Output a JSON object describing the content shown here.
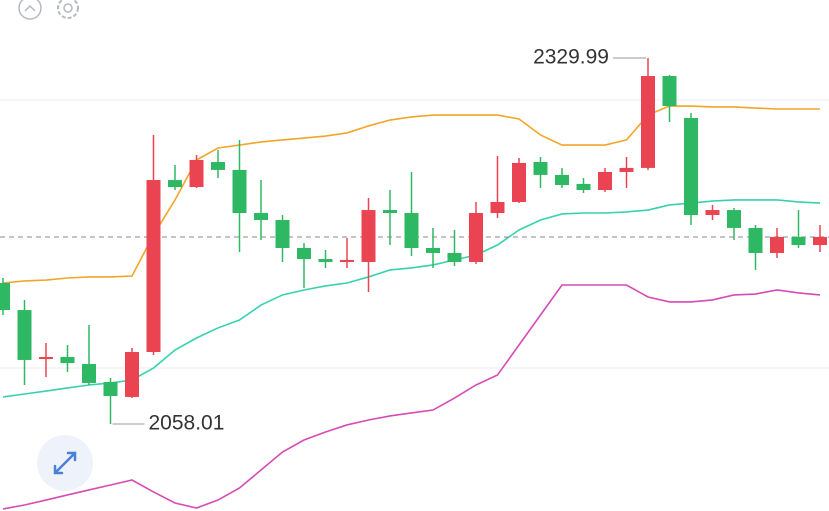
{
  "chart_data": {
    "type": "candlestick",
    "up_color": "#ea4452",
    "down_color": "#2fb863",
    "candles": [
      {
        "open": 2162.8,
        "high": 2166.5,
        "low": 2139.0,
        "close": 2142.7
      },
      {
        "open": 2142.7,
        "high": 2150.2,
        "low": 2087.0,
        "close": 2105.6
      },
      {
        "open": 2106.3,
        "high": 2118.2,
        "low": 2092.9,
        "close": 2107.8
      },
      {
        "open": 2107.8,
        "high": 2116.7,
        "low": 2096.7,
        "close": 2103.3
      },
      {
        "open": 2102.6,
        "high": 2131.6,
        "low": 2087.0,
        "close": 2088.5
      },
      {
        "open": 2089.2,
        "high": 2092.2,
        "low": 2058.01,
        "close": 2078.8
      },
      {
        "open": 2078.1,
        "high": 2114.5,
        "low": 2077.3,
        "close": 2111.5
      },
      {
        "open": 2111.5,
        "high": 2272.8,
        "low": 2109.3,
        "close": 2239.3
      },
      {
        "open": 2239.3,
        "high": 2250.5,
        "low": 2231.9,
        "close": 2234.1
      },
      {
        "open": 2234.1,
        "high": 2257.9,
        "low": 2233.4,
        "close": 2254.2
      },
      {
        "open": 2252.7,
        "high": 2261.6,
        "low": 2240.8,
        "close": 2246.8
      },
      {
        "open": 2246.8,
        "high": 2269.1,
        "low": 2185.8,
        "close": 2214.8
      },
      {
        "open": 2214.8,
        "high": 2239.3,
        "low": 2194.8,
        "close": 2209.6
      },
      {
        "open": 2209.6,
        "high": 2213.3,
        "low": 2178.4,
        "close": 2188.8
      },
      {
        "open": 2188.8,
        "high": 2192.5,
        "low": 2159.1,
        "close": 2180.6
      },
      {
        "open": 2180.6,
        "high": 2187.3,
        "low": 2173.9,
        "close": 2178.4
      },
      {
        "open": 2178.4,
        "high": 2196.2,
        "low": 2173.9,
        "close": 2179.9
      },
      {
        "open": 2178.4,
        "high": 2226.0,
        "low": 2156.1,
        "close": 2217.0
      },
      {
        "open": 2217.0,
        "high": 2231.9,
        "low": 2191.0,
        "close": 2214.8
      },
      {
        "open": 2214.8,
        "high": 2245.3,
        "low": 2182.9,
        "close": 2188.8
      },
      {
        "open": 2188.8,
        "high": 2203.7,
        "low": 2173.9,
        "close": 2185.1
      },
      {
        "open": 2185.1,
        "high": 2202.2,
        "low": 2175.4,
        "close": 2178.4
      },
      {
        "open": 2178.4,
        "high": 2223.0,
        "low": 2176.9,
        "close": 2214.8
      },
      {
        "open": 2214.8,
        "high": 2257.2,
        "low": 2211.1,
        "close": 2223.0
      },
      {
        "open": 2223.0,
        "high": 2255.7,
        "low": 2222.2,
        "close": 2252.0
      },
      {
        "open": 2252.7,
        "high": 2256.4,
        "low": 2233.4,
        "close": 2243.1
      },
      {
        "open": 2243.1,
        "high": 2248.3,
        "low": 2233.4,
        "close": 2235.6
      },
      {
        "open": 2236.4,
        "high": 2240.8,
        "low": 2229.7,
        "close": 2231.9
      },
      {
        "open": 2231.9,
        "high": 2248.3,
        "low": 2230.4,
        "close": 2245.3
      },
      {
        "open": 2245.3,
        "high": 2256.4,
        "low": 2233.4,
        "close": 2248.3
      },
      {
        "open": 2248.3,
        "high": 2329.99,
        "low": 2246.8,
        "close": 2316.6
      },
      {
        "open": 2316.6,
        "high": 2317.4,
        "low": 2282.4,
        "close": 2294.3
      },
      {
        "open": 2285.4,
        "high": 2289.1,
        "low": 2205.9,
        "close": 2213.3
      },
      {
        "open": 2213.3,
        "high": 2220.8,
        "low": 2209.6,
        "close": 2217.0
      },
      {
        "open": 2217.0,
        "high": 2218.5,
        "low": 2194.8,
        "close": 2203.7
      },
      {
        "open": 2203.7,
        "high": 2205.9,
        "low": 2172.5,
        "close": 2185.1
      },
      {
        "open": 2185.1,
        "high": 2203.7,
        "low": 2181.4,
        "close": 2197.0
      },
      {
        "open": 2197.0,
        "high": 2217.0,
        "low": 2188.8,
        "close": 2191.0
      },
      {
        "open": 2191.0,
        "high": 2205.9,
        "low": 2185.8,
        "close": 2197.0
      }
    ],
    "series": [
      {
        "color": "#f2a629",
        "values": [
          2162.8,
          2164.3,
          2165.0,
          2166.5,
          2167.3,
          2167.3,
          2168.0,
          2198.5,
          2224.5,
          2254.2,
          2263.1,
          2265.3,
          2267.6,
          2269.1,
          2270.5,
          2272.0,
          2274.3,
          2279.5,
          2283.9,
          2286.2,
          2287.6,
          2287.6,
          2287.6,
          2287.6,
          2284.7,
          2272.8,
          2265.3,
          2265.3,
          2265.3,
          2269.1,
          2287.6,
          2294.3,
          2294.3,
          2293.6,
          2293.6,
          2292.8,
          2292.1,
          2292.1,
          2292.1
        ]
      },
      {
        "color": "#38d1b0",
        "values": [
          2078.1,
          2080.3,
          2082.5,
          2084.8,
          2087.0,
          2088.5,
          2090.7,
          2099.6,
          2113.0,
          2121.9,
          2129.4,
          2135.3,
          2146.4,
          2153.9,
          2157.6,
          2160.6,
          2162.8,
          2167.3,
          2172.5,
          2174.0,
          2176.2,
          2179.9,
          2183.6,
          2191.0,
          2202.2,
          2209.6,
          2214.1,
          2214.8,
          2214.8,
          2215.6,
          2217.0,
          2220.8,
          2222.2,
          2223.7,
          2224.5,
          2224.5,
          2224.5,
          2223.0,
          2222.2
        ]
      },
      {
        "color": "#d64bb6",
        "values": [
          1994.9,
          1997.8,
          2001.5,
          2005.3,
          2009.0,
          2012.7,
          2016.4,
          2007.5,
          1999.3,
          1995.6,
          2001.5,
          2010.5,
          2023.8,
          2037.2,
          2046.1,
          2052.1,
          2057.3,
          2061.0,
          2064.0,
          2066.2,
          2068.4,
          2077.3,
          2087.0,
          2094.4,
          2116.7,
          2139.0,
          2161.3,
          2161.3,
          2161.3,
          2161.3,
          2152.4,
          2148.7,
          2148.7,
          2150.2,
          2153.9,
          2154.6,
          2157.6,
          2155.4,
          2153.9
        ]
      }
    ]
  }
}
